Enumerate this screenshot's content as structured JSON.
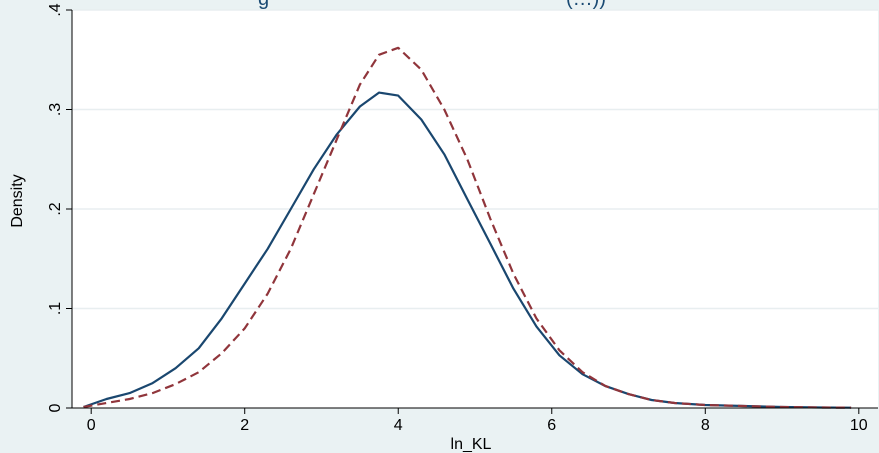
{
  "chart_data": {
    "type": "line",
    "title": "g",
    "title_suffix": "(…))",
    "xlabel": "ln_KL",
    "ylabel": "Density",
    "xlim": [
      -0.25,
      10.25
    ],
    "ylim": [
      0,
      0.4
    ],
    "x_ticks": [
      "0",
      "2",
      "4",
      "6",
      "8",
      "10"
    ],
    "y_ticks": [
      "0",
      ".1",
      ".2",
      ".3",
      ".4"
    ],
    "grid": true,
    "plot_background": "#ffffff",
    "page_background": "#eaf2f3",
    "series": [
      {
        "color": "#1a476f",
        "style": "solid",
        "x": [
          -0.1,
          0.2,
          0.5,
          0.8,
          1.1,
          1.4,
          1.7,
          2.0,
          2.3,
          2.6,
          2.9,
          3.2,
          3.5,
          3.75,
          4.0,
          4.3,
          4.6,
          4.9,
          5.2,
          5.5,
          5.8,
          6.1,
          6.4,
          6.7,
          7.0,
          7.3,
          7.6,
          8.0,
          8.5,
          9.0,
          9.5,
          9.9
        ],
        "y": [
          0.001,
          0.009,
          0.015,
          0.025,
          0.04,
          0.06,
          0.09,
          0.125,
          0.16,
          0.2,
          0.24,
          0.275,
          0.303,
          0.317,
          0.314,
          0.29,
          0.255,
          0.21,
          0.165,
          0.12,
          0.082,
          0.053,
          0.034,
          0.022,
          0.014,
          0.008,
          0.005,
          0.003,
          0.002,
          0.001,
          0.0005,
          0.0003
        ]
      },
      {
        "color": "#90353b",
        "style": "dashed",
        "x": [
          -0.1,
          0.2,
          0.5,
          0.8,
          1.1,
          1.4,
          1.7,
          2.0,
          2.3,
          2.6,
          2.9,
          3.2,
          3.5,
          3.75,
          4.0,
          4.3,
          4.6,
          4.9,
          5.2,
          5.5,
          5.8,
          6.1,
          6.4,
          6.7,
          7.0,
          7.3,
          7.6,
          8.0,
          8.5,
          9.0,
          9.5,
          9.9
        ],
        "y": [
          0.001,
          0.005,
          0.009,
          0.015,
          0.024,
          0.036,
          0.055,
          0.08,
          0.115,
          0.16,
          0.215,
          0.27,
          0.325,
          0.355,
          0.362,
          0.34,
          0.3,
          0.25,
          0.19,
          0.135,
          0.09,
          0.058,
          0.036,
          0.022,
          0.014,
          0.008,
          0.005,
          0.003,
          0.002,
          0.001,
          0.0005,
          0.0003
        ]
      }
    ]
  }
}
